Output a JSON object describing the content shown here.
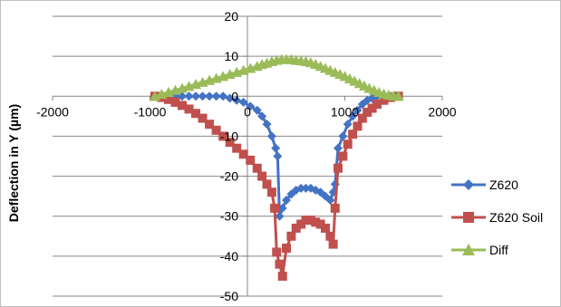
{
  "chart_data": {
    "type": "line",
    "title": "",
    "xlabel": "",
    "ylabel": "Deflection in Y (µm)",
    "xlim": [
      -2000,
      2000
    ],
    "ylim": [
      -50,
      20
    ],
    "xticks": [
      -2000,
      -1000,
      0,
      1000,
      2000
    ],
    "yticks": [
      20,
      10,
      0,
      -10,
      -20,
      -30,
      -40,
      -50
    ],
    "grid": "horizontal",
    "legend_position": "right",
    "series": [
      {
        "name": "Z620",
        "color": "#4472C4",
        "marker": "diamond",
        "points": [
          [
            -950,
            0
          ],
          [
            -880,
            0
          ],
          [
            -810,
            0
          ],
          [
            -740,
            0
          ],
          [
            -670,
            0
          ],
          [
            -600,
            0
          ],
          [
            -530,
            0
          ],
          [
            -460,
            0
          ],
          [
            -390,
            0
          ],
          [
            -320,
            0
          ],
          [
            -250,
            0
          ],
          [
            -180,
            -0.5
          ],
          [
            -110,
            -1
          ],
          [
            -40,
            -1.5
          ],
          [
            30,
            -2.5
          ],
          [
            100,
            -3.5
          ],
          [
            150,
            -5
          ],
          [
            200,
            -7
          ],
          [
            250,
            -10
          ],
          [
            290,
            -13
          ],
          [
            310,
            -15
          ],
          [
            330,
            -30
          ],
          [
            360,
            -28
          ],
          [
            400,
            -26
          ],
          [
            450,
            -24.5
          ],
          [
            500,
            -23.5
          ],
          [
            550,
            -23
          ],
          [
            600,
            -23
          ],
          [
            650,
            -23
          ],
          [
            700,
            -23.5
          ],
          [
            750,
            -24
          ],
          [
            800,
            -25
          ],
          [
            850,
            -26
          ],
          [
            880,
            -24
          ],
          [
            900,
            -22
          ],
          [
            930,
            -13
          ],
          [
            980,
            -10
          ],
          [
            1030,
            -7
          ],
          [
            1080,
            -5
          ],
          [
            1130,
            -3.5
          ],
          [
            1180,
            -2
          ],
          [
            1230,
            -1
          ],
          [
            1280,
            -0.5
          ],
          [
            1330,
            0
          ],
          [
            1400,
            0
          ],
          [
            1470,
            0
          ],
          [
            1550,
            0
          ]
        ]
      },
      {
        "name": "Z620 Soil",
        "color": "#C0504D",
        "marker": "square",
        "points": [
          [
            -950,
            0
          ],
          [
            -880,
            -0.3
          ],
          [
            -810,
            -0.8
          ],
          [
            -740,
            -1.5
          ],
          [
            -670,
            -2.3
          ],
          [
            -600,
            -3.2
          ],
          [
            -530,
            -4.3
          ],
          [
            -460,
            -5.5
          ],
          [
            -390,
            -7
          ],
          [
            -320,
            -8.5
          ],
          [
            -250,
            -10
          ],
          [
            -180,
            -11.5
          ],
          [
            -110,
            -13
          ],
          [
            -40,
            -14.5
          ],
          [
            30,
            -16
          ],
          [
            100,
            -18
          ],
          [
            150,
            -20
          ],
          [
            200,
            -22
          ],
          [
            250,
            -24
          ],
          [
            280,
            -28
          ],
          [
            300,
            -39
          ],
          [
            330,
            -42
          ],
          [
            360,
            -45
          ],
          [
            400,
            -38
          ],
          [
            450,
            -35
          ],
          [
            500,
            -33
          ],
          [
            550,
            -32
          ],
          [
            600,
            -31
          ],
          [
            650,
            -31
          ],
          [
            700,
            -31.5
          ],
          [
            750,
            -32
          ],
          [
            800,
            -33
          ],
          [
            850,
            -35
          ],
          [
            880,
            -37
          ],
          [
            900,
            -28
          ],
          [
            930,
            -18
          ],
          [
            980,
            -15
          ],
          [
            1030,
            -12
          ],
          [
            1080,
            -9.5
          ],
          [
            1130,
            -7.5
          ],
          [
            1180,
            -5.5
          ],
          [
            1230,
            -4
          ],
          [
            1280,
            -3
          ],
          [
            1330,
            -2
          ],
          [
            1400,
            -1
          ],
          [
            1470,
            -0.3
          ],
          [
            1550,
            0
          ]
        ]
      },
      {
        "name": "Diff",
        "color": "#9BBB59",
        "marker": "triangle",
        "points": [
          [
            -950,
            0
          ],
          [
            -880,
            0.5
          ],
          [
            -810,
            1
          ],
          [
            -740,
            1.5
          ],
          [
            -670,
            2
          ],
          [
            -600,
            2.5
          ],
          [
            -530,
            3
          ],
          [
            -460,
            3.5
          ],
          [
            -390,
            4
          ],
          [
            -320,
            4.5
          ],
          [
            -250,
            5
          ],
          [
            -180,
            5.5
          ],
          [
            -110,
            6
          ],
          [
            -40,
            6.5
          ],
          [
            30,
            7
          ],
          [
            100,
            7.5
          ],
          [
            150,
            8
          ],
          [
            200,
            8.3
          ],
          [
            250,
            8.7
          ],
          [
            300,
            9
          ],
          [
            350,
            9.2
          ],
          [
            400,
            9.2
          ],
          [
            450,
            9.2
          ],
          [
            500,
            9
          ],
          [
            550,
            8.9
          ],
          [
            600,
            8.7
          ],
          [
            650,
            8.4
          ],
          [
            700,
            8
          ],
          [
            750,
            7.5
          ],
          [
            800,
            7
          ],
          [
            850,
            6.5
          ],
          [
            900,
            6
          ],
          [
            950,
            5.5
          ],
          [
            1000,
            5
          ],
          [
            1050,
            4.4
          ],
          [
            1100,
            3.8
          ],
          [
            1150,
            3.2
          ],
          [
            1200,
            2.6
          ],
          [
            1250,
            2
          ],
          [
            1300,
            1.5
          ],
          [
            1350,
            1
          ],
          [
            1400,
            0.6
          ],
          [
            1450,
            0.3
          ],
          [
            1500,
            0.1
          ],
          [
            1550,
            0
          ]
        ]
      }
    ]
  }
}
